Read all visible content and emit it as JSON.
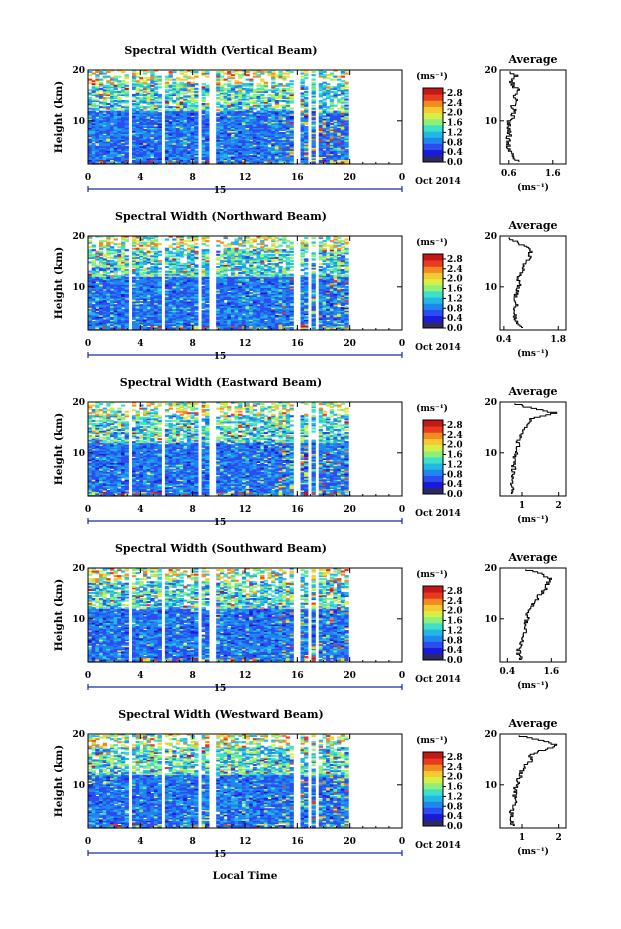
{
  "figure": {
    "x_axis_label": "Local Time",
    "date_label": "Oct 2014",
    "day_label": "15",
    "y_axis_label": "Height (km)",
    "unit_label": "(ms⁻¹)",
    "average_title": "Average"
  },
  "chart_data": [
    {
      "type": "heatmap",
      "title": "Spectral Width (Vertical Beam)",
      "xlabel": "Local Time",
      "ylabel": "Height (km)",
      "x_ticks": [
        "0",
        "4",
        "8",
        "12",
        "16",
        "20",
        "0"
      ],
      "y_ticks": [
        "10",
        "20"
      ],
      "xlim": [
        0,
        24
      ],
      "ylim": [
        1.5,
        20
      ],
      "colorbar": {
        "unit": "(ms⁻¹)",
        "ticks": [
          "0.0",
          "0.4",
          "0.8",
          "1.2",
          "1.6",
          "2.0",
          "2.4",
          "2.8"
        ],
        "range": [
          0,
          3.0
        ]
      },
      "data_gaps_hours": [
        [
          3.0,
          3.3
        ],
        [
          5.7,
          6.0
        ],
        [
          8.3,
          8.7
        ],
        [
          9.3,
          9.7
        ],
        [
          15.8,
          16.1
        ],
        [
          16.8,
          17.0
        ],
        [
          17.4,
          17.6
        ],
        [
          20.0,
          24.0
        ]
      ],
      "average_profile": {
        "title": "Average",
        "xlabel": "(ms⁻¹)",
        "x_ticks": [
          "0.6",
          "1.6"
        ],
        "xlim": [
          0.4,
          1.9
        ],
        "y_ticks": [
          "10",
          "20"
        ],
        "heights_km": [
          2,
          3,
          4,
          5,
          6,
          7,
          8,
          9,
          10,
          11,
          12,
          13,
          14,
          15,
          16,
          17,
          18,
          19,
          20
        ],
        "values": [
          0.85,
          0.7,
          0.62,
          0.6,
          0.58,
          0.6,
          0.62,
          0.6,
          0.62,
          0.68,
          0.72,
          0.7,
          0.8,
          0.75,
          0.85,
          0.7,
          0.65,
          0.75,
          0.6
        ]
      }
    },
    {
      "type": "heatmap",
      "title": "Spectral Width (Northward Beam)",
      "xlabel": "Local Time",
      "ylabel": "Height (km)",
      "x_ticks": [
        "0",
        "4",
        "8",
        "12",
        "16",
        "20",
        "0"
      ],
      "y_ticks": [
        "10",
        "20"
      ],
      "xlim": [
        0,
        24
      ],
      "ylim": [
        1.5,
        20
      ],
      "colorbar": {
        "unit": "(ms⁻¹)",
        "ticks": [
          "0.0",
          "0.4",
          "0.8",
          "1.2",
          "1.6",
          "2.0",
          "2.4",
          "2.8"
        ],
        "range": [
          0,
          3.0
        ]
      },
      "data_gaps_hours": [
        [
          3.0,
          3.3
        ],
        [
          5.7,
          6.0
        ],
        [
          8.3,
          8.7
        ],
        [
          9.3,
          9.7
        ],
        [
          15.8,
          16.1
        ],
        [
          16.8,
          17.0
        ],
        [
          17.4,
          17.6
        ],
        [
          20.0,
          24.0
        ]
      ],
      "average_profile": {
        "title": "Average",
        "xlabel": "(ms⁻¹)",
        "x_ticks": [
          "0.4",
          "1.8"
        ],
        "xlim": [
          0.3,
          2.0
        ],
        "y_ticks": [
          "10",
          "20"
        ],
        "heights_km": [
          2,
          3,
          4,
          5,
          6,
          7,
          8,
          9,
          10,
          11,
          12,
          13,
          14,
          15,
          16,
          17,
          18,
          19,
          20
        ],
        "values": [
          0.9,
          0.75,
          0.7,
          0.68,
          0.72,
          0.7,
          0.68,
          0.72,
          0.75,
          0.8,
          0.78,
          0.85,
          0.9,
          0.95,
          1.05,
          1.1,
          0.95,
          0.7,
          0.5
        ]
      }
    },
    {
      "type": "heatmap",
      "title": "Spectral Width (Eastward Beam)",
      "xlabel": "Local Time",
      "ylabel": "Height (km)",
      "x_ticks": [
        "0",
        "4",
        "8",
        "12",
        "16",
        "20",
        "0"
      ],
      "y_ticks": [
        "10",
        "20"
      ],
      "xlim": [
        0,
        24
      ],
      "ylim": [
        1.5,
        20
      ],
      "colorbar": {
        "unit": "(ms⁻¹)",
        "ticks": [
          "0.0",
          "0.4",
          "0.8",
          "1.2",
          "1.6",
          "2.0",
          "2.4",
          "2.8"
        ],
        "range": [
          0,
          3.0
        ]
      },
      "data_gaps_hours": [
        [
          3.0,
          3.3
        ],
        [
          5.7,
          6.0
        ],
        [
          8.3,
          8.7
        ],
        [
          9.3,
          9.7
        ],
        [
          15.8,
          16.1
        ],
        [
          16.8,
          17.0
        ],
        [
          17.4,
          17.6
        ],
        [
          20.0,
          24.0
        ]
      ],
      "average_profile": {
        "title": "Average",
        "xlabel": "(ms⁻¹)",
        "x_ticks": [
          "1",
          "2"
        ],
        "xlim": [
          0.4,
          2.2
        ],
        "y_ticks": [
          "10",
          "20"
        ],
        "heights_km": [
          2,
          3,
          4,
          5,
          6,
          7,
          8,
          9,
          10,
          11,
          12,
          13,
          14,
          15,
          16,
          17,
          18,
          19,
          20
        ],
        "values": [
          0.75,
          0.72,
          0.7,
          0.72,
          0.75,
          0.78,
          0.76,
          0.8,
          0.85,
          0.9,
          0.88,
          0.95,
          1.0,
          1.1,
          1.15,
          1.3,
          1.9,
          1.2,
          0.7
        ]
      }
    },
    {
      "type": "heatmap",
      "title": "Spectral Width (Southward Beam)",
      "xlabel": "Local Time",
      "ylabel": "Height (km)",
      "x_ticks": [
        "0",
        "4",
        "8",
        "12",
        "16",
        "20",
        "0"
      ],
      "y_ticks": [
        "10",
        "20"
      ],
      "xlim": [
        0,
        24
      ],
      "ylim": [
        1.5,
        20
      ],
      "colorbar": {
        "unit": "(ms⁻¹)",
        "ticks": [
          "0.0",
          "0.4",
          "0.8",
          "1.2",
          "1.6",
          "2.0",
          "2.4",
          "2.8"
        ],
        "range": [
          0,
          3.0
        ]
      },
      "data_gaps_hours": [
        [
          3.0,
          3.3
        ],
        [
          5.7,
          6.0
        ],
        [
          8.3,
          8.7
        ],
        [
          9.3,
          9.7
        ],
        [
          15.8,
          16.1
        ],
        [
          16.8,
          17.0
        ],
        [
          17.4,
          17.6
        ],
        [
          20.0,
          24.0
        ]
      ],
      "average_profile": {
        "title": "Average",
        "xlabel": "(ms⁻¹)",
        "x_ticks": [
          "0.4",
          "1.6"
        ],
        "xlim": [
          0.2,
          2.0
        ],
        "y_ticks": [
          "10",
          "20"
        ],
        "heights_km": [
          2,
          3,
          4,
          5,
          6,
          7,
          8,
          9,
          10,
          11,
          12,
          13,
          14,
          15,
          16,
          17,
          18,
          19,
          20
        ],
        "values": [
          0.8,
          0.72,
          0.7,
          0.75,
          0.8,
          0.85,
          0.9,
          0.88,
          0.95,
          0.9,
          1.0,
          1.1,
          1.2,
          1.3,
          1.45,
          1.5,
          1.55,
          1.3,
          0.8
        ]
      }
    },
    {
      "type": "heatmap",
      "title": "Spectral Width (Westward Beam)",
      "xlabel": "Local Time",
      "ylabel": "Height (km)",
      "x_ticks": [
        "0",
        "4",
        "8",
        "12",
        "16",
        "20",
        "0"
      ],
      "y_ticks": [
        "10",
        "20"
      ],
      "xlim": [
        0,
        24
      ],
      "ylim": [
        1.5,
        20
      ],
      "colorbar": {
        "unit": "(ms⁻¹)",
        "ticks": [
          "0.0",
          "0.4",
          "0.8",
          "1.2",
          "1.6",
          "2.0",
          "2.4",
          "2.8"
        ],
        "range": [
          0,
          3.0
        ]
      },
      "data_gaps_hours": [
        [
          3.0,
          3.3
        ],
        [
          5.7,
          6.0
        ],
        [
          8.3,
          8.7
        ],
        [
          9.3,
          9.7
        ],
        [
          15.8,
          16.1
        ],
        [
          16.8,
          17.0
        ],
        [
          17.4,
          17.6
        ],
        [
          20.0,
          24.0
        ]
      ],
      "average_profile": {
        "title": "Average",
        "xlabel": "(ms⁻¹)",
        "x_ticks": [
          "1",
          "2"
        ],
        "xlim": [
          0.4,
          2.2
        ],
        "y_ticks": [
          "10",
          "20"
        ],
        "heights_km": [
          2,
          3,
          4,
          5,
          6,
          7,
          8,
          9,
          10,
          11,
          12,
          13,
          14,
          15,
          16,
          17,
          18,
          19,
          20
        ],
        "values": [
          0.75,
          0.72,
          0.7,
          0.72,
          0.78,
          0.8,
          0.78,
          0.82,
          0.85,
          0.9,
          0.95,
          1.0,
          1.1,
          1.3,
          1.2,
          1.6,
          2.0,
          1.4,
          0.8
        ]
      }
    }
  ]
}
